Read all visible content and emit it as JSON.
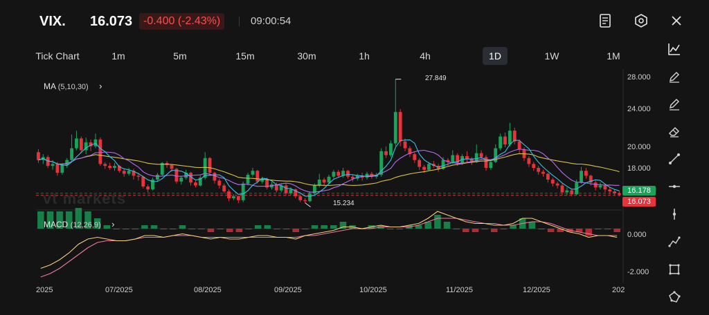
{
  "header": {
    "symbol": "VIX.",
    "price": "16.073",
    "change": "-0.400 (-2.43%)",
    "time": "09:00:54",
    "icons": [
      "notebook-icon",
      "settings-icon",
      "close-icon"
    ]
  },
  "tabs": [
    {
      "label": "Tick Chart"
    },
    {
      "label": "1m"
    },
    {
      "label": "5m"
    },
    {
      "label": "15m"
    },
    {
      "label": "30m"
    },
    {
      "label": "1h"
    },
    {
      "label": "4h"
    },
    {
      "label": "1D"
    },
    {
      "label": "1W"
    },
    {
      "label": "1M"
    }
  ],
  "active_tab": "1D",
  "tools": [
    "line-chart-icon",
    "pencil-icon",
    "pencil-icon",
    "eraser-icon",
    "trend-line-icon",
    "horizontal-line-icon",
    "vertical-line-icon",
    "polyline-icon",
    "rectangle-icon",
    "shape-icon"
  ],
  "ma_indicator": {
    "label": "MA",
    "params": "(5,10,30)"
  },
  "macd_indicator": {
    "label": "MACD",
    "params": "(12,26,9)"
  },
  "annotations": {
    "high": "27.849",
    "low": "15.234"
  },
  "watermark": "vt markets",
  "price_axis": [
    "28.000",
    "24.000",
    "20.000",
    "18.000"
  ],
  "macd_axis": [
    "0.000",
    "-2.000"
  ],
  "time_axis": [
    "2025",
    "07/2025",
    "08/2025",
    "09/2025",
    "10/2025",
    "11/2025",
    "12/2025",
    "202"
  ],
  "badges": {
    "ma_value": "16.178",
    "last_price": "16.073"
  },
  "colors": {
    "up": "#1aa35a",
    "down": "#e8323c",
    "ma5": "#35c3e6",
    "ma10": "#b46cf0",
    "ma30": "#d8c24a",
    "macd_line": "#f3d27a",
    "signal_line": "#f07aa0",
    "bg": "#141414"
  },
  "chart_data": {
    "type": "candlestick",
    "ylim": [
      14.5,
      28.6
    ],
    "high_marker": 27.849,
    "low_marker": 15.234,
    "last_price": 16.073,
    "candles": [
      [
        20.4,
        19.6,
        20.7,
        19.3
      ],
      [
        19.6,
        19.9,
        20.2,
        19.2
      ],
      [
        19.9,
        19.0,
        20.1,
        18.8
      ],
      [
        19.0,
        19.2,
        19.6,
        18.6
      ],
      [
        19.2,
        18.3,
        19.4,
        18.0
      ],
      [
        18.3,
        19.1,
        19.3,
        18.1
      ],
      [
        19.1,
        19.6,
        19.8,
        18.8
      ],
      [
        19.6,
        20.8,
        22.2,
        19.4
      ],
      [
        20.8,
        21.8,
        22.6,
        20.6
      ],
      [
        21.8,
        20.6,
        22.0,
        20.3
      ],
      [
        20.6,
        21.4,
        21.9,
        20.2
      ],
      [
        21.4,
        21.0,
        21.7,
        20.5
      ],
      [
        21.0,
        21.7,
        22.3,
        20.8
      ],
      [
        21.7,
        19.2,
        21.9,
        19.0
      ],
      [
        19.2,
        19.0,
        19.4,
        18.7
      ],
      [
        19.0,
        18.8,
        19.3,
        18.6
      ],
      [
        18.8,
        19.0,
        19.3,
        18.5
      ],
      [
        19.0,
        18.5,
        19.1,
        18.3
      ],
      [
        18.5,
        18.2,
        18.7,
        17.9
      ],
      [
        18.2,
        18.5,
        18.8,
        18.0
      ],
      [
        18.5,
        18.0,
        18.7,
        17.6
      ],
      [
        18.0,
        17.9,
        18.3,
        17.5
      ],
      [
        17.9,
        16.9,
        18.0,
        16.7
      ],
      [
        16.9,
        16.6,
        17.1,
        16.3
      ],
      [
        16.6,
        17.6,
        17.8,
        16.5
      ],
      [
        17.6,
        18.1,
        18.3,
        17.4
      ],
      [
        18.1,
        19.3,
        19.4,
        18.0
      ],
      [
        19.3,
        19.1,
        19.5,
        18.8
      ],
      [
        19.1,
        18.7,
        19.2,
        18.4
      ],
      [
        18.7,
        17.4,
        18.8,
        17.2
      ],
      [
        17.4,
        17.8,
        18.0,
        17.1
      ],
      [
        17.8,
        18.3,
        18.6,
        17.6
      ],
      [
        18.3,
        17.3,
        18.4,
        17.0
      ],
      [
        17.3,
        17.0,
        17.5,
        16.8
      ],
      [
        17.0,
        17.8,
        18.0,
        16.9
      ],
      [
        17.8,
        19.8,
        20.4,
        17.6
      ],
      [
        19.8,
        18.3,
        19.9,
        18.0
      ],
      [
        18.3,
        17.5,
        18.4,
        17.2
      ],
      [
        17.5,
        17.0,
        17.7,
        16.7
      ],
      [
        17.0,
        16.4,
        17.2,
        16.2
      ],
      [
        16.4,
        15.7,
        16.6,
        15.4
      ],
      [
        15.7,
        15.9,
        16.1,
        15.5
      ],
      [
        15.9,
        15.5,
        16.0,
        15.2
      ],
      [
        15.5,
        17.2,
        17.4,
        15.3
      ],
      [
        17.2,
        18.1,
        18.3,
        17.0
      ],
      [
        18.1,
        18.5,
        18.8,
        17.9
      ],
      [
        18.5,
        17.4,
        18.6,
        17.2
      ],
      [
        17.4,
        17.6,
        17.9,
        17.2
      ],
      [
        17.6,
        16.8,
        17.8,
        16.6
      ],
      [
        16.8,
        17.1,
        17.4,
        16.6
      ],
      [
        17.1,
        16.5,
        17.3,
        16.3
      ],
      [
        16.5,
        17.0,
        17.2,
        16.3
      ],
      [
        17.0,
        16.2,
        17.2,
        16.0
      ],
      [
        16.2,
        16.6,
        16.8,
        16.0
      ],
      [
        16.6,
        15.9,
        16.7,
        15.7
      ],
      [
        15.9,
        15.5,
        16.1,
        15.3
      ],
      [
        15.5,
        15.4,
        15.7,
        15.234
      ],
      [
        15.4,
        16.2,
        16.4,
        15.3
      ],
      [
        16.2,
        17.0,
        17.2,
        16.0
      ],
      [
        17.0,
        17.6,
        18.2,
        16.8
      ],
      [
        17.6,
        17.3,
        17.8,
        17.0
      ],
      [
        17.3,
        17.9,
        18.1,
        17.1
      ],
      [
        17.9,
        18.4,
        18.6,
        17.7
      ],
      [
        18.4,
        18.0,
        18.6,
        17.8
      ],
      [
        18.0,
        18.5,
        18.8,
        17.8
      ],
      [
        18.5,
        17.9,
        18.6,
        17.7
      ],
      [
        17.9,
        17.7,
        18.1,
        17.4
      ],
      [
        17.7,
        18.0,
        18.2,
        17.5
      ],
      [
        18.0,
        17.8,
        18.3,
        17.5
      ],
      [
        17.8,
        18.2,
        18.4,
        17.6
      ],
      [
        18.2,
        17.9,
        18.4,
        17.7
      ],
      [
        17.9,
        18.1,
        18.3,
        17.7
      ],
      [
        18.1,
        20.5,
        20.8,
        17.9
      ],
      [
        20.5,
        20.1,
        21.0,
        19.8
      ],
      [
        20.1,
        21.3,
        21.6,
        19.9
      ],
      [
        21.3,
        24.5,
        27.849,
        21.0
      ],
      [
        24.5,
        21.5,
        24.8,
        21.0
      ],
      [
        21.5,
        20.8,
        21.8,
        20.5
      ],
      [
        20.8,
        20.2,
        21.0,
        19.9
      ],
      [
        20.2,
        19.6,
        20.4,
        19.3
      ],
      [
        19.6,
        18.9,
        19.8,
        18.6
      ],
      [
        18.9,
        18.6,
        19.1,
        18.3
      ],
      [
        18.6,
        19.2,
        19.4,
        18.5
      ],
      [
        19.2,
        19.0,
        19.5,
        18.8
      ],
      [
        19.0,
        18.7,
        19.2,
        18.4
      ],
      [
        18.7,
        19.6,
        19.9,
        18.6
      ],
      [
        19.6,
        19.4,
        19.8,
        19.0
      ],
      [
        19.4,
        20.1,
        20.6,
        19.2
      ],
      [
        20.1,
        19.3,
        20.3,
        19.0
      ],
      [
        19.3,
        20.0,
        20.2,
        19.1
      ],
      [
        20.0,
        19.7,
        20.5,
        19.4
      ],
      [
        19.7,
        19.4,
        19.9,
        19.1
      ],
      [
        19.4,
        20.3,
        21.2,
        19.3
      ],
      [
        20.3,
        19.9,
        20.6,
        19.6
      ],
      [
        19.9,
        18.8,
        20.1,
        18.5
      ],
      [
        18.8,
        19.4,
        19.6,
        18.6
      ],
      [
        19.4,
        20.8,
        21.2,
        19.3
      ],
      [
        20.8,
        22.0,
        22.3,
        20.6
      ],
      [
        22.0,
        21.2,
        22.4,
        20.9
      ],
      [
        21.2,
        22.6,
        23.4,
        21.0
      ],
      [
        22.6,
        21.5,
        22.9,
        21.2
      ],
      [
        21.5,
        20.7,
        21.7,
        20.3
      ],
      [
        20.7,
        19.8,
        20.9,
        19.5
      ],
      [
        19.8,
        19.2,
        20.0,
        18.9
      ],
      [
        19.2,
        18.8,
        19.4,
        18.5
      ],
      [
        18.8,
        18.4,
        19.0,
        18.1
      ],
      [
        18.4,
        18.2,
        18.6,
        17.9
      ],
      [
        18.2,
        17.6,
        18.3,
        17.3
      ],
      [
        17.6,
        17.2,
        17.8,
        16.9
      ],
      [
        17.2,
        17.0,
        17.4,
        16.7
      ],
      [
        17.0,
        16.3,
        17.2,
        16.0
      ],
      [
        16.3,
        16.5,
        16.8,
        16.0
      ],
      [
        16.5,
        16.1,
        16.7,
        15.9
      ],
      [
        16.1,
        17.3,
        17.6,
        16.0
      ],
      [
        17.3,
        18.5,
        18.9,
        17.2
      ],
      [
        18.5,
        18.0,
        18.8,
        17.7
      ],
      [
        18.0,
        17.3,
        18.1,
        17.0
      ],
      [
        17.3,
        16.8,
        17.5,
        16.5
      ],
      [
        16.8,
        17.0,
        17.3,
        16.6
      ],
      [
        17.0,
        16.6,
        17.2,
        16.3
      ],
      [
        16.6,
        16.4,
        16.8,
        16.1
      ],
      [
        16.4,
        16.2,
        16.6,
        16.0
      ],
      [
        16.2,
        16.073,
        16.4,
        15.9
      ]
    ],
    "macd": {
      "ylim": [
        -3.0,
        1.0
      ],
      "macd_line": [
        -2.3,
        -2.1,
        -1.8,
        -1.4,
        -0.9,
        -0.6,
        -0.5,
        -0.6,
        -0.7,
        -0.7,
        -0.6,
        -0.4,
        -0.4,
        -0.5,
        -0.4,
        -0.3,
        -0.4,
        -0.5,
        -0.6,
        -0.5,
        -0.6,
        -0.6,
        -0.5,
        -0.4,
        -0.4,
        -0.5,
        -0.5,
        -0.6,
        -0.4,
        -0.3,
        -0.2,
        -0.1,
        0.1,
        0.1,
        0.0,
        0.1,
        0.2,
        0.1,
        0.1,
        0.2,
        0.3,
        0.6,
        1.0,
        0.8,
        0.6,
        0.4,
        0.3,
        0.3,
        0.2,
        0.2,
        0.3,
        0.6,
        0.6,
        0.4,
        0.2,
        0.0,
        -0.2,
        -0.3,
        -0.5,
        -0.4,
        -0.4,
        -0.5
      ],
      "signal_line": [
        -2.8,
        -2.6,
        -2.3,
        -1.9,
        -1.5,
        -1.1,
        -0.8,
        -0.7,
        -0.7,
        -0.7,
        -0.6,
        -0.5,
        -0.5,
        -0.5,
        -0.4,
        -0.4,
        -0.4,
        -0.5,
        -0.5,
        -0.5,
        -0.5,
        -0.5,
        -0.5,
        -0.5,
        -0.5,
        -0.5,
        -0.5,
        -0.5,
        -0.4,
        -0.4,
        -0.3,
        -0.2,
        -0.1,
        0.0,
        0.0,
        0.0,
        0.1,
        0.1,
        0.1,
        0.1,
        0.2,
        0.4,
        0.6,
        0.6,
        0.6,
        0.5,
        0.4,
        0.3,
        0.3,
        0.2,
        0.2,
        0.3,
        0.4,
        0.4,
        0.3,
        0.1,
        -0.1,
        -0.2,
        -0.3,
        -0.4,
        -0.4,
        -0.4
      ]
    }
  }
}
